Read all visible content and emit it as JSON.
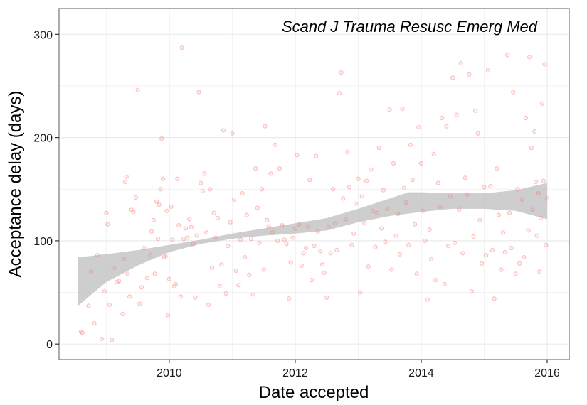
{
  "chart_data": {
    "type": "scatter",
    "title": "",
    "annotation": "Scand J Trauma Resusc Emerg Med",
    "xlabel": "Date accepted",
    "ylabel": "Acceptance delay (days)",
    "xlim": [
      2008.25,
      2016.35
    ],
    "ylim": [
      -15,
      325
    ],
    "x_ticks": [
      2010,
      2012,
      2014,
      2016
    ],
    "x_tick_labels": [
      "2010",
      "2012",
      "2014",
      "2016"
    ],
    "y_ticks": [
      0,
      100,
      200,
      300
    ],
    "y_tick_labels": [
      "0",
      "100",
      "200",
      "300"
    ],
    "grid": true,
    "point_color": "#f8766d",
    "smooth_band_color": "#bdbdbd",
    "points": [
      [
        2008.6,
        12
      ],
      [
        2008.62,
        11
      ],
      [
        2008.72,
        37
      ],
      [
        2008.76,
        70
      ],
      [
        2008.81,
        20
      ],
      [
        2008.86,
        86
      ],
      [
        2008.93,
        5
      ],
      [
        2008.97,
        51
      ],
      [
        2009.0,
        127
      ],
      [
        2009.02,
        116
      ],
      [
        2009.05,
        38
      ],
      [
        2009.09,
        4
      ],
      [
        2009.12,
        74
      ],
      [
        2009.17,
        60
      ],
      [
        2009.2,
        61
      ],
      [
        2009.26,
        29
      ],
      [
        2009.28,
        82
      ],
      [
        2009.3,
        157
      ],
      [
        2009.32,
        162
      ],
      [
        2009.34,
        68
      ],
      [
        2009.37,
        46
      ],
      [
        2009.4,
        130
      ],
      [
        2009.43,
        128
      ],
      [
        2009.47,
        142
      ],
      [
        2009.5,
        246
      ],
      [
        2009.53,
        39
      ],
      [
        2009.56,
        55
      ],
      [
        2009.6,
        93
      ],
      [
        2009.65,
        64
      ],
      [
        2009.7,
        86
      ],
      [
        2009.72,
        109
      ],
      [
        2009.75,
        120
      ],
      [
        2009.77,
        68
      ],
      [
        2009.8,
        138
      ],
      [
        2009.82,
        102
      ],
      [
        2009.84,
        135
      ],
      [
        2009.86,
        150
      ],
      [
        2009.88,
        199
      ],
      [
        2009.9,
        160
      ],
      [
        2009.92,
        84
      ],
      [
        2009.94,
        85
      ],
      [
        2009.96,
        129
      ],
      [
        2009.98,
        28
      ],
      [
        2010.0,
        63
      ],
      [
        2010.03,
        133
      ],
      [
        2010.05,
        101
      ],
      [
        2010.08,
        56
      ],
      [
        2010.1,
        58
      ],
      [
        2010.13,
        160
      ],
      [
        2010.15,
        115
      ],
      [
        2010.18,
        46
      ],
      [
        2010.2,
        287
      ],
      [
        2010.23,
        102
      ],
      [
        2010.26,
        112
      ],
      [
        2010.29,
        103
      ],
      [
        2010.32,
        121
      ],
      [
        2010.35,
        113
      ],
      [
        2010.38,
        97
      ],
      [
        2010.41,
        45
      ],
      [
        2010.44,
        105
      ],
      [
        2010.47,
        244
      ],
      [
        2010.5,
        156
      ],
      [
        2010.53,
        148
      ],
      [
        2010.56,
        165
      ],
      [
        2010.59,
        108
      ],
      [
        2010.62,
        38
      ],
      [
        2010.65,
        150
      ],
      [
        2010.68,
        74
      ],
      [
        2010.71,
        127
      ],
      [
        2010.74,
        103
      ],
      [
        2010.77,
        122
      ],
      [
        2010.8,
        56
      ],
      [
        2010.83,
        77
      ],
      [
        2010.86,
        207
      ],
      [
        2010.9,
        49
      ],
      [
        2010.93,
        95
      ],
      [
        2010.97,
        118
      ],
      [
        2011.0,
        204
      ],
      [
        2011.03,
        140
      ],
      [
        2011.06,
        71
      ],
      [
        2011.1,
        57
      ],
      [
        2011.13,
        101
      ],
      [
        2011.16,
        146
      ],
      [
        2011.2,
        84
      ],
      [
        2011.23,
        125
      ],
      [
        2011.27,
        67
      ],
      [
        2011.3,
        102
      ],
      [
        2011.33,
        48
      ],
      [
        2011.37,
        170
      ],
      [
        2011.4,
        132
      ],
      [
        2011.43,
        98
      ],
      [
        2011.47,
        150
      ],
      [
        2011.5,
        72
      ],
      [
        2011.52,
        211
      ],
      [
        2011.55,
        120
      ],
      [
        2011.58,
        114
      ],
      [
        2011.61,
        165
      ],
      [
        2011.64,
        108
      ],
      [
        2011.68,
        193
      ],
      [
        2011.72,
        100
      ],
      [
        2011.75,
        170
      ],
      [
        2011.79,
        115
      ],
      [
        2011.83,
        101
      ],
      [
        2011.86,
        97
      ],
      [
        2011.9,
        44
      ],
      [
        2011.93,
        79
      ],
      [
        2011.96,
        103
      ],
      [
        2012.0,
        112
      ],
      [
        2012.03,
        183
      ],
      [
        2012.06,
        116
      ],
      [
        2012.1,
        76
      ],
      [
        2012.13,
        88
      ],
      [
        2012.17,
        93
      ],
      [
        2012.2,
        114
      ],
      [
        2012.23,
        159
      ],
      [
        2012.26,
        62
      ],
      [
        2012.3,
        95
      ],
      [
        2012.33,
        182
      ],
      [
        2012.36,
        109
      ],
      [
        2012.4,
        90
      ],
      [
        2012.43,
        77
      ],
      [
        2012.46,
        69
      ],
      [
        2012.5,
        45
      ],
      [
        2012.53,
        113
      ],
      [
        2012.56,
        88
      ],
      [
        2012.6,
        150
      ],
      [
        2012.63,
        117
      ],
      [
        2012.66,
        91
      ],
      [
        2012.7,
        243
      ],
      [
        2012.73,
        263
      ],
      [
        2012.76,
        141
      ],
      [
        2012.8,
        121
      ],
      [
        2012.83,
        186
      ],
      [
        2012.86,
        152
      ],
      [
        2012.9,
        96
      ],
      [
        2012.93,
        107
      ],
      [
        2012.96,
        136
      ],
      [
        2013.0,
        160
      ],
      [
        2013.03,
        50
      ],
      [
        2013.06,
        143
      ],
      [
        2013.1,
        117
      ],
      [
        2013.13,
        158
      ],
      [
        2013.16,
        75
      ],
      [
        2013.2,
        169
      ],
      [
        2013.23,
        129
      ],
      [
        2013.27,
        94
      ],
      [
        2013.3,
        127
      ],
      [
        2013.33,
        190
      ],
      [
        2013.37,
        112
      ],
      [
        2013.4,
        149
      ],
      [
        2013.43,
        99
      ],
      [
        2013.46,
        131
      ],
      [
        2013.5,
        227
      ],
      [
        2013.53,
        72
      ],
      [
        2013.56,
        175
      ],
      [
        2013.6,
        105
      ],
      [
        2013.63,
        126
      ],
      [
        2013.66,
        87
      ],
      [
        2013.7,
        228
      ],
      [
        2013.73,
        151
      ],
      [
        2013.76,
        137
      ],
      [
        2013.8,
        96
      ],
      [
        2013.83,
        193
      ],
      [
        2013.86,
        159
      ],
      [
        2013.9,
        116
      ],
      [
        2013.93,
        68
      ],
      [
        2013.96,
        210
      ],
      [
        2014.0,
        175
      ],
      [
        2014.03,
        129
      ],
      [
        2014.06,
        100
      ],
      [
        2014.1,
        43
      ],
      [
        2014.13,
        111
      ],
      [
        2014.16,
        82
      ],
      [
        2014.2,
        184
      ],
      [
        2014.23,
        62
      ],
      [
        2014.27,
        156
      ],
      [
        2014.3,
        133
      ],
      [
        2014.33,
        219
      ],
      [
        2014.37,
        58
      ],
      [
        2014.4,
        211
      ],
      [
        2014.43,
        95
      ],
      [
        2014.46,
        143
      ],
      [
        2014.5,
        258
      ],
      [
        2014.53,
        98
      ],
      [
        2014.56,
        222
      ],
      [
        2014.6,
        130
      ],
      [
        2014.63,
        272
      ],
      [
        2014.66,
        88
      ],
      [
        2014.7,
        161
      ],
      [
        2014.73,
        145
      ],
      [
        2014.76,
        261
      ],
      [
        2014.8,
        51
      ],
      [
        2014.83,
        104
      ],
      [
        2014.86,
        226
      ],
      [
        2014.9,
        204
      ],
      [
        2014.93,
        120
      ],
      [
        2014.96,
        78
      ],
      [
        2015.0,
        152
      ],
      [
        2015.03,
        86
      ],
      [
        2015.06,
        265
      ],
      [
        2015.1,
        153
      ],
      [
        2015.13,
        91
      ],
      [
        2015.16,
        44
      ],
      [
        2015.2,
        170
      ],
      [
        2015.23,
        125
      ],
      [
        2015.27,
        72
      ],
      [
        2015.3,
        108
      ],
      [
        2015.33,
        89
      ],
      [
        2015.37,
        280
      ],
      [
        2015.4,
        127
      ],
      [
        2015.43,
        93
      ],
      [
        2015.46,
        244
      ],
      [
        2015.5,
        68
      ],
      [
        2015.53,
        150
      ],
      [
        2015.56,
        78
      ],
      [
        2015.6,
        140
      ],
      [
        2015.63,
        84
      ],
      [
        2015.66,
        219
      ],
      [
        2015.7,
        110
      ],
      [
        2015.72,
        278
      ],
      [
        2015.75,
        190
      ],
      [
        2015.77,
        130
      ],
      [
        2015.8,
        206
      ],
      [
        2015.82,
        157
      ],
      [
        2015.84,
        105
      ],
      [
        2015.86,
        146
      ],
      [
        2015.88,
        70
      ],
      [
        2015.9,
        122
      ],
      [
        2015.92,
        233
      ],
      [
        2015.94,
        158
      ],
      [
        2015.96,
        271
      ],
      [
        2015.98,
        96
      ],
      [
        2016.0,
        141
      ]
    ],
    "smooth_upper": [
      [
        2008.55,
        84
      ],
      [
        2009.0,
        87
      ],
      [
        2009.5,
        91
      ],
      [
        2010.0,
        96
      ],
      [
        2010.5,
        101
      ],
      [
        2011.0,
        107
      ],
      [
        2011.5,
        112
      ],
      [
        2012.0,
        117
      ],
      [
        2012.5,
        122
      ],
      [
        2013.0,
        131
      ],
      [
        2013.5,
        141
      ],
      [
        2013.8,
        147
      ],
      [
        2014.0,
        147
      ],
      [
        2014.5,
        146
      ],
      [
        2015.0,
        146
      ],
      [
        2015.5,
        149
      ],
      [
        2016.0,
        156
      ]
    ],
    "smooth_lower": [
      [
        2008.55,
        37
      ],
      [
        2009.0,
        60
      ],
      [
        2009.5,
        76
      ],
      [
        2010.0,
        89
      ],
      [
        2010.5,
        97
      ],
      [
        2011.0,
        102
      ],
      [
        2011.5,
        105
      ],
      [
        2012.0,
        107
      ],
      [
        2012.5,
        110
      ],
      [
        2013.0,
        118
      ],
      [
        2013.5,
        124
      ],
      [
        2014.0,
        128
      ],
      [
        2014.5,
        131
      ],
      [
        2015.0,
        131
      ],
      [
        2015.5,
        129
      ],
      [
        2016.0,
        121
      ]
    ]
  }
}
